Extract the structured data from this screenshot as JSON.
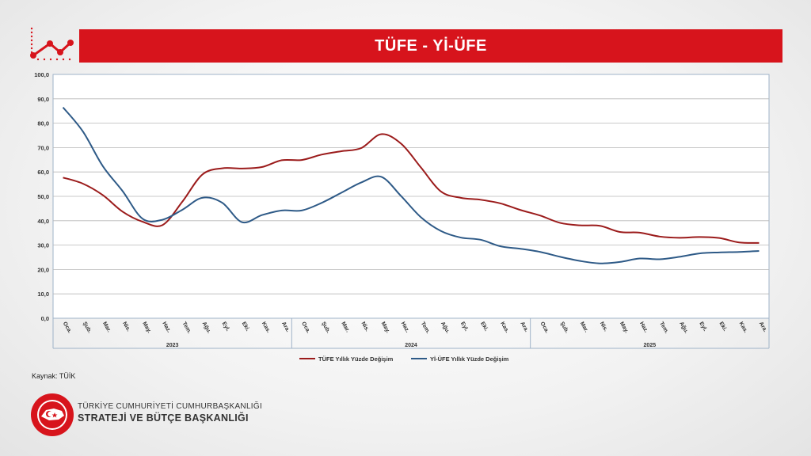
{
  "banner": {
    "title": "TÜFE - Yİ-ÜFE"
  },
  "source": "Kaynak: TÜİK",
  "organization": {
    "line1": "TÜRKİYE CUMHURİYETİ CUMHURBAŞKANLIĞI",
    "line2": "STRATEJİ VE BÜTÇE BAŞKANLIĞI"
  },
  "colors": {
    "banner": "#d7141c",
    "tufe": "#9b1b1b",
    "yiufe": "#2e5a87",
    "accent_icon": "#d7141c"
  },
  "icons": {
    "header": "line-chart-icon",
    "seal": "seal-logo-icon"
  },
  "chart_data": {
    "type": "line",
    "title": "",
    "xlabel": "",
    "ylabel": "",
    "ylim": [
      0,
      100
    ],
    "yticks": [
      "0,0",
      "10,0",
      "20,0",
      "30,0",
      "40,0",
      "50,0",
      "60,0",
      "70,0",
      "80,0",
      "90,0",
      "100,0"
    ],
    "grid": true,
    "legend_position": "bottom",
    "categories": [
      "Oca.",
      "Şub.",
      "Mar.",
      "Nis.",
      "May.",
      "Haz.",
      "Tem.",
      "Ağu.",
      "Eyl.",
      "Eki.",
      "Kas.",
      "Ara.",
      "Oca.",
      "Şub.",
      "Mar.",
      "Nis.",
      "May.",
      "Haz.",
      "Tem.",
      "Ağu.",
      "Eyl.",
      "Eki.",
      "Kas.",
      "Ara.",
      "Oca.",
      "Şub.",
      "Mar.",
      "Nis.",
      "May.",
      "Haz.",
      "Tem.",
      "Ağu.",
      "Eyl.",
      "Eki.",
      "Kas.",
      "Ara."
    ],
    "year_labels": [
      "2023",
      "2024",
      "2025"
    ],
    "series": [
      {
        "name": "TÜFE Yıllık Yüzde Değişim",
        "color": "#9b1b1b",
        "values": [
          57.7,
          55.2,
          50.5,
          43.7,
          39.6,
          38.2,
          47.8,
          58.9,
          61.5,
          61.4,
          62.0,
          64.8,
          64.9,
          67.1,
          68.5,
          69.8,
          75.5,
          71.6,
          61.8,
          52.0,
          49.4,
          48.6,
          47.1,
          44.4,
          42.1,
          39.1,
          38.1,
          37.9,
          35.4,
          35.1,
          33.5,
          33.0,
          33.3,
          32.9,
          31.1,
          30.9
        ]
      },
      {
        "name": "Yİ-ÜFE Yıllık Yüzde Değişim",
        "color": "#2e5a87",
        "values": [
          86.5,
          76.6,
          62.4,
          52.1,
          40.8,
          40.4,
          44.5,
          49.4,
          47.4,
          39.4,
          42.3,
          44.2,
          44.2,
          47.3,
          51.5,
          55.7,
          58.0,
          50.1,
          41.4,
          35.8,
          33.1,
          32.2,
          29.5,
          28.5,
          27.2,
          25.2,
          23.5,
          22.5,
          23.1,
          24.5,
          24.2,
          25.2,
          26.6,
          27.0,
          27.2,
          27.6
        ]
      }
    ]
  }
}
